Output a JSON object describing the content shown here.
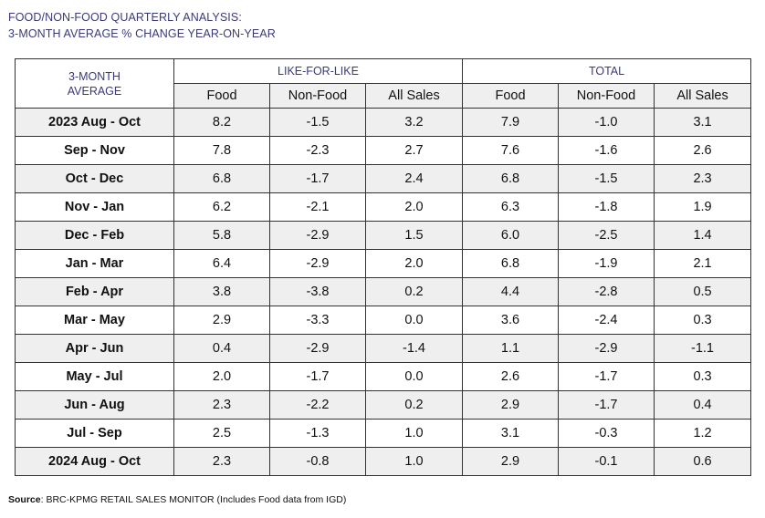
{
  "title": {
    "line1": "FOOD/NON-FOOD QUARTERLY ANALYSIS:",
    "line2": "3-MONTH AVERAGE % CHANGE YEAR-ON-YEAR"
  },
  "table": {
    "corner_line1": "3-MONTH",
    "corner_line2": "AVERAGE",
    "groups": [
      "LIKE-FOR-LIKE",
      "TOTAL"
    ],
    "columns": [
      "Food",
      "Non-Food",
      "All Sales",
      "Food",
      "Non-Food",
      "All Sales"
    ],
    "rows": [
      {
        "period": "2023 Aug - Oct",
        "values": [
          "8.2",
          "-1.5",
          "3.2",
          "7.9",
          "-1.0",
          "3.1"
        ]
      },
      {
        "period": "Sep - Nov",
        "values": [
          "7.8",
          "-2.3",
          "2.7",
          "7.6",
          "-1.6",
          "2.6"
        ]
      },
      {
        "period": "Oct - Dec",
        "values": [
          "6.8",
          "-1.7",
          "2.4",
          "6.8",
          "-1.5",
          "2.3"
        ]
      },
      {
        "period": "Nov - Jan",
        "values": [
          "6.2",
          "-2.1",
          "2.0",
          "6.3",
          "-1.8",
          "1.9"
        ]
      },
      {
        "period": "Dec - Feb",
        "values": [
          "5.8",
          "-2.9",
          "1.5",
          "6.0",
          "-2.5",
          "1.4"
        ]
      },
      {
        "period": "Jan - Mar",
        "values": [
          "6.4",
          "-2.9",
          "2.0",
          "6.8",
          "-1.9",
          "2.1"
        ]
      },
      {
        "period": "Feb - Apr",
        "values": [
          "3.8",
          "-3.8",
          "0.2",
          "4.4",
          "-2.8",
          "0.5"
        ]
      },
      {
        "period": "Mar - May",
        "values": [
          "2.9",
          "-3.3",
          "0.0",
          "3.6",
          "-2.4",
          "0.3"
        ]
      },
      {
        "period": "Apr - Jun",
        "values": [
          "0.4",
          "-2.9",
          "-1.4",
          "1.1",
          "-2.9",
          "-1.1"
        ]
      },
      {
        "period": "May - Jul",
        "values": [
          "2.0",
          "-1.7",
          "0.0",
          "2.6",
          "-1.7",
          "0.3"
        ]
      },
      {
        "period": "Jun - Aug",
        "values": [
          "2.3",
          "-2.2",
          "0.2",
          "2.9",
          "-1.7",
          "0.4"
        ]
      },
      {
        "period": "Jul - Sep",
        "values": [
          "2.5",
          "-1.3",
          "1.0",
          "3.1",
          "-0.3",
          "1.2"
        ]
      },
      {
        "period": "2024 Aug - Oct",
        "values": [
          "2.3",
          "-0.8",
          "1.0",
          "2.9",
          "-0.1",
          "0.6"
        ]
      }
    ]
  },
  "source": {
    "label": "Source",
    "text": ": BRC-KPMG RETAIL SALES MONITOR (Includes Food data from IGD)"
  }
}
